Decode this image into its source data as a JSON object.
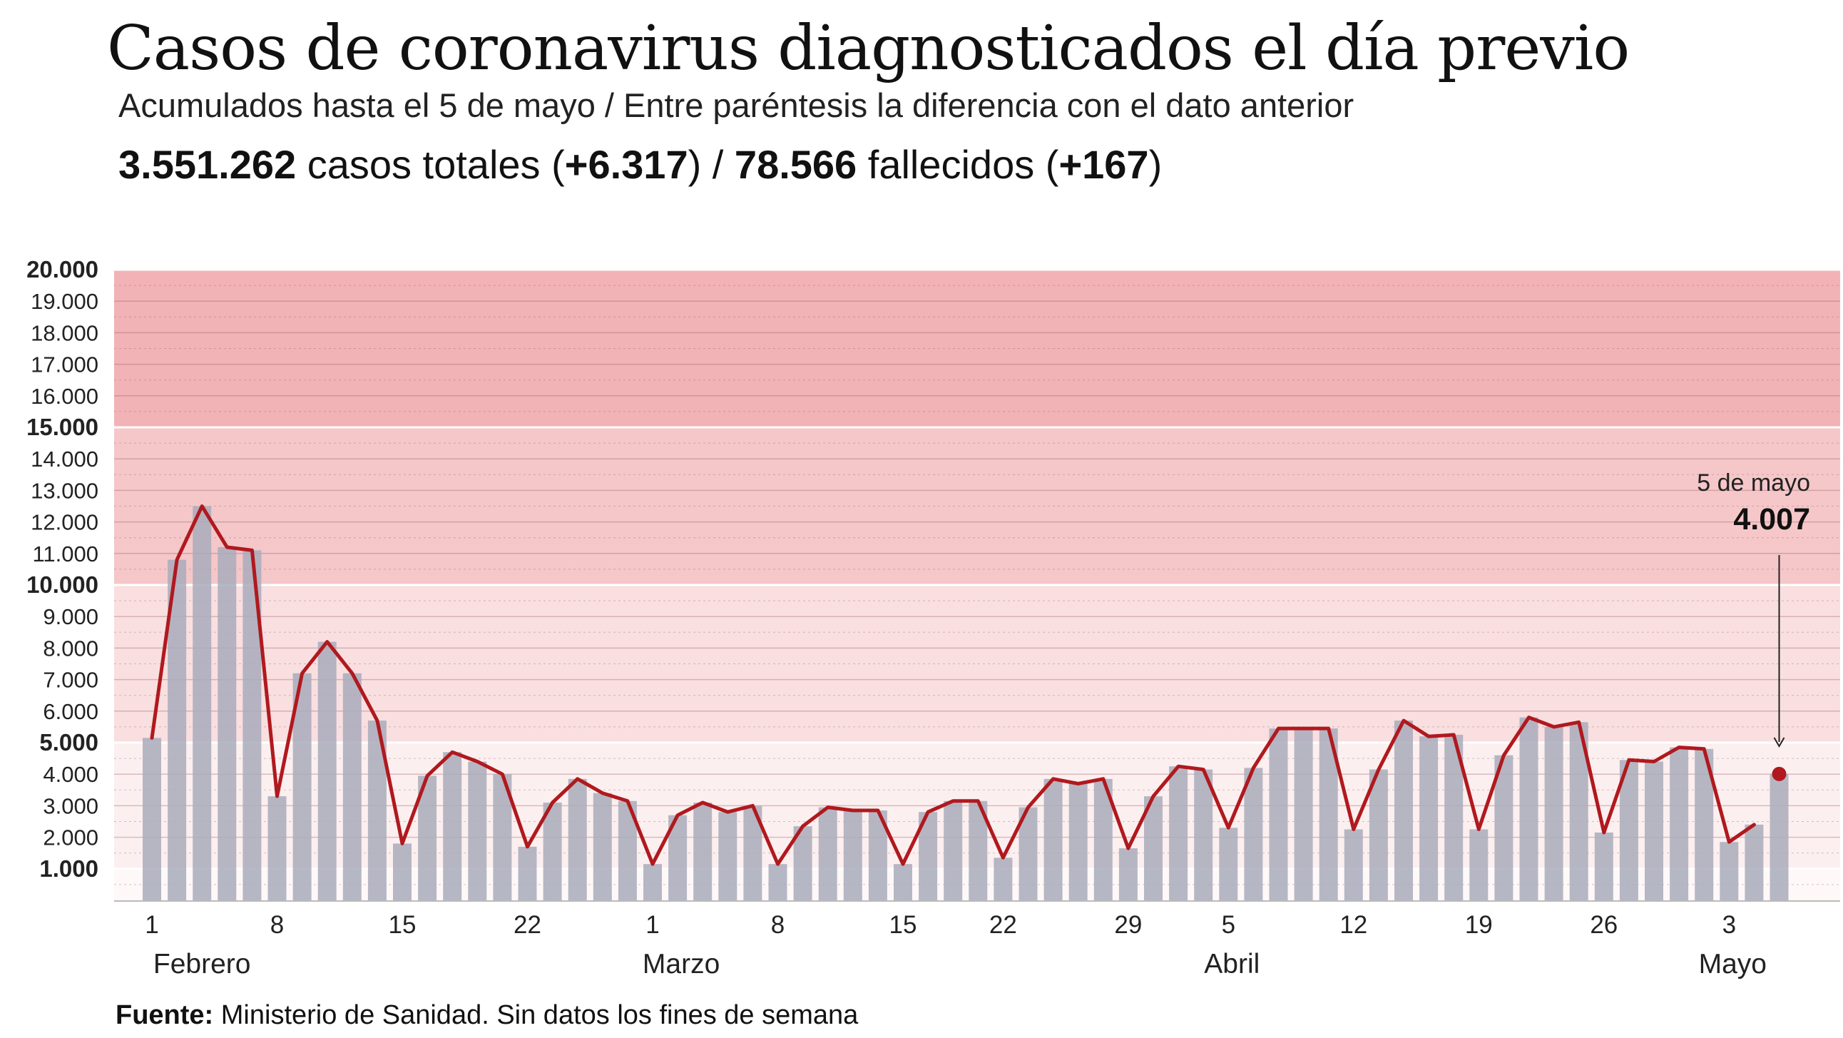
{
  "title": "Casos de coronavirus diagnosticados el día previo",
  "subtitle": "Acumulados hasta el 5 de mayo / Entre paréntesis la diferencia con el dato anterior",
  "totals": {
    "cases": "3.551.262",
    "cases_label": " casos totales (",
    "cases_diff": "+6.317",
    "separator": ") / ",
    "deaths": "78.566",
    "deaths_label": " fallecidos (",
    "deaths_diff": "+167",
    "close": ")"
  },
  "source": {
    "label": "Fuente:",
    "text": " Ministerio de Sanidad. Sin datos los fines de semana"
  },
  "colors": {
    "line": "#b0191e",
    "bar": "#a9abbb",
    "band_high": "#f2b3b6",
    "band_mid": "#f5c7c9",
    "band_low": "#f9dfe0",
    "band_min": "#fcefef",
    "band_base": "#fff8f8"
  },
  "chart_data": {
    "type": "bar",
    "x_tick_labels": [
      {
        "index": 0,
        "label": "1"
      },
      {
        "index": 5,
        "label": "8"
      },
      {
        "index": 10,
        "label": "15"
      },
      {
        "index": 15,
        "label": "22"
      },
      {
        "index": 20,
        "label": "1"
      },
      {
        "index": 25,
        "label": "8"
      },
      {
        "index": 30,
        "label": "15"
      },
      {
        "index": 34,
        "label": "22"
      },
      {
        "index": 39,
        "label": "29"
      },
      {
        "index": 43,
        "label": "5"
      },
      {
        "index": 48,
        "label": "12"
      },
      {
        "index": 53,
        "label": "19"
      },
      {
        "index": 58,
        "label": "26"
      },
      {
        "index": 63,
        "label": "3"
      }
    ],
    "month_labels": [
      {
        "index": 2,
        "label": "Febrero"
      },
      {
        "index": 21,
        "label": "Marzo"
      },
      {
        "index": 43,
        "label": "Abril"
      },
      {
        "index": 63,
        "label": "Mayo"
      }
    ],
    "y_ticks": [
      {
        "value": 1000,
        "label": "1.000",
        "bold": true
      },
      {
        "value": 2000,
        "label": "2.000"
      },
      {
        "value": 3000,
        "label": "3.000"
      },
      {
        "value": 4000,
        "label": "4.000"
      },
      {
        "value": 5000,
        "label": "5.000",
        "bold": true
      },
      {
        "value": 6000,
        "label": "6.000"
      },
      {
        "value": 7000,
        "label": "7.000"
      },
      {
        "value": 8000,
        "label": "8.000"
      },
      {
        "value": 9000,
        "label": "9.000"
      },
      {
        "value": 10000,
        "label": "10.000",
        "bold": true
      },
      {
        "value": 11000,
        "label": "11.000"
      },
      {
        "value": 12000,
        "label": "12.000"
      },
      {
        "value": 13000,
        "label": "13.000"
      },
      {
        "value": 14000,
        "label": "14.000"
      },
      {
        "value": 15000,
        "label": "15.000",
        "bold": true
      },
      {
        "value": 16000,
        "label": "16.000"
      },
      {
        "value": 17000,
        "label": "17.000"
      },
      {
        "value": 18000,
        "label": "18.000"
      },
      {
        "value": 19000,
        "label": "19.000"
      },
      {
        "value": 20000,
        "label": "20.000",
        "bold": true
      }
    ],
    "ylim": [
      0,
      20000
    ],
    "bands": [
      0,
      1000,
      5000,
      10000,
      15000,
      20000
    ],
    "bars": [
      5150,
      10800,
      12500,
      11200,
      11100,
      3300,
      7200,
      8200,
      7200,
      5700,
      1800,
      3950,
      4700,
      4400,
      4000,
      1700,
      3100,
      3850,
      3400,
      3150,
      1150,
      2700,
      3100,
      2800,
      3000,
      1150,
      2350,
      2950,
      2850,
      2850,
      1150,
      2800,
      3150,
      3150,
      1350,
      2950,
      3850,
      3700,
      3850,
      1650,
      3300,
      4250,
      4150,
      2300,
      4200,
      5450,
      5450,
      5450,
      2250,
      4150,
      5700,
      5200,
      5250,
      2250,
      4600,
      5800,
      5500,
      5650,
      2150,
      4450,
      4400,
      4850,
      4800,
      1850,
      2400,
      4007
    ],
    "line": [
      5150,
      10800,
      12500,
      11200,
      11100,
      3300,
      7200,
      8200,
      7200,
      5700,
      1800,
      3950,
      4700,
      4400,
      4000,
      1700,
      3100,
      3850,
      3400,
      3150,
      1150,
      2700,
      3100,
      2800,
      3000,
      1150,
      2350,
      2950,
      2850,
      2850,
      1150,
      2800,
      3150,
      3150,
      1350,
      2950,
      3850,
      3700,
      3850,
      1650,
      3300,
      4250,
      4150,
      2300,
      4200,
      5450,
      5450,
      5450,
      2250,
      4150,
      5700,
      5200,
      5250,
      2250,
      4600,
      5800,
      5500,
      5650,
      2150,
      4450,
      4400,
      4850,
      4800,
      1850,
      2400
    ],
    "highlight": {
      "index": 65,
      "value": 4007,
      "date_label": "5 de mayo",
      "value_label": "4.007"
    },
    "grid": true
  }
}
